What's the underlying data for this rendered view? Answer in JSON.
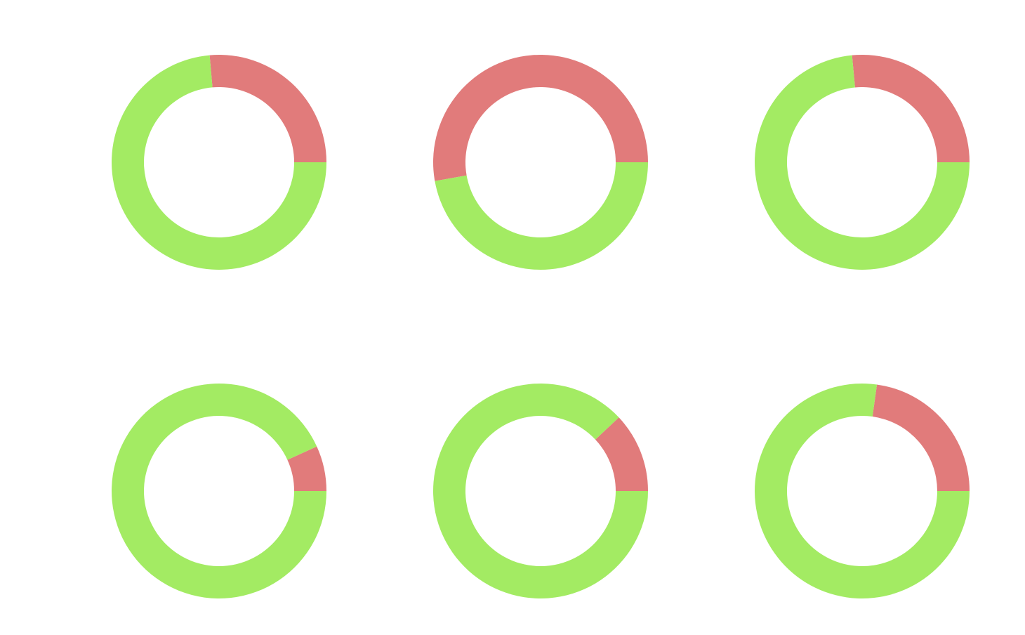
{
  "colors": {
    "good": "#a3eb63",
    "bad": "#e17b7b",
    "background": "#ffffff"
  },
  "chart_data": [
    {
      "type": "pie",
      "variant": "donut",
      "series": [
        {
          "color_key": "bad",
          "value": 0.264
        },
        {
          "color_key": "good",
          "value": 0.736
        }
      ]
    },
    {
      "type": "pie",
      "variant": "donut",
      "series": [
        {
          "color_key": "bad",
          "value": 0.528
        },
        {
          "color_key": "good",
          "value": 0.472
        }
      ]
    },
    {
      "type": "pie",
      "variant": "donut",
      "series": [
        {
          "color_key": "bad",
          "value": 0.265
        },
        {
          "color_key": "good",
          "value": 0.735
        }
      ]
    },
    {
      "type": "pie",
      "variant": "donut",
      "series": [
        {
          "color_key": "bad",
          "value": 0.068
        },
        {
          "color_key": "good",
          "value": 0.932
        }
      ]
    },
    {
      "type": "pie",
      "variant": "donut",
      "series": [
        {
          "color_key": "bad",
          "value": 0.12
        },
        {
          "color_key": "good",
          "value": 0.88
        }
      ]
    },
    {
      "type": "pie",
      "variant": "donut",
      "series": [
        {
          "color_key": "bad",
          "value": 0.228
        },
        {
          "color_key": "good",
          "value": 0.772
        }
      ]
    }
  ]
}
